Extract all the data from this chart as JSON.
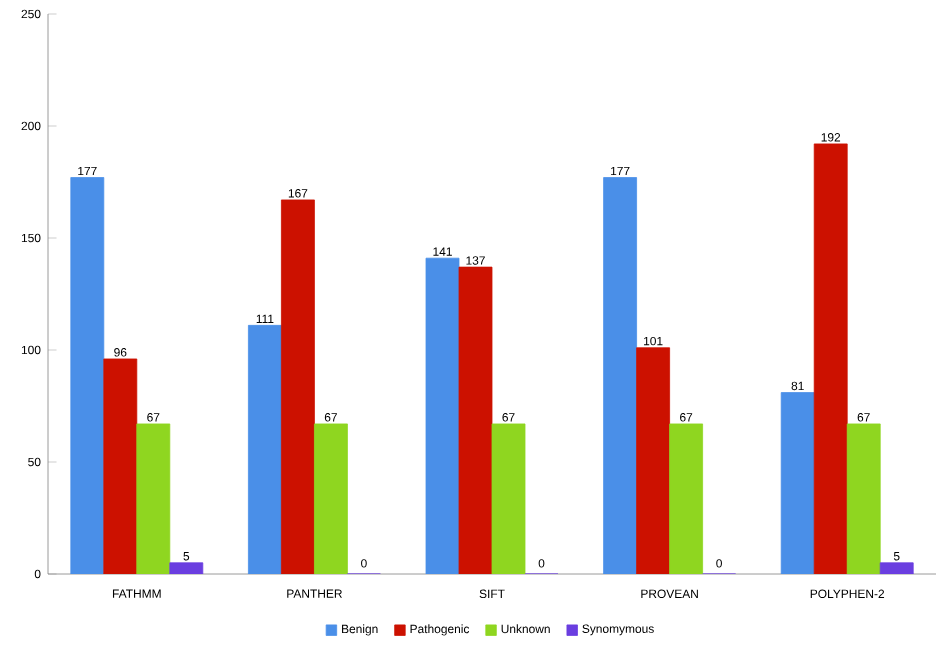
{
  "chart_data": {
    "type": "bar",
    "categories": [
      "FATHMM",
      "PANTHER",
      "SIFT",
      "PROVEAN",
      "POLYPHEN-2"
    ],
    "series": [
      {
        "name": "Benign",
        "color": "#4a8fe8",
        "values": [
          177,
          111,
          141,
          177,
          81
        ],
        "value_labels": [
          "177",
          "111",
          "141",
          "177",
          "81"
        ]
      },
      {
        "name": "Pathogenic",
        "color": "#cc1100",
        "values": [
          96,
          167,
          137,
          101,
          192
        ],
        "value_labels": [
          "96",
          "167",
          "137",
          "101",
          "192"
        ]
      },
      {
        "name": "Unknown",
        "color": "#8fd620",
        "values": [
          67,
          67,
          67,
          67,
          67
        ],
        "value_labels": [
          "67",
          "67",
          "67",
          "67",
          "67"
        ]
      },
      {
        "name": "Synomymous",
        "color": "#6a3ee0",
        "values": [
          5,
          0,
          0,
          0,
          5
        ],
        "value_labels": [
          "5",
          null,
          null,
          null,
          "5"
        ]
      }
    ],
    "ylim": [
      0,
      250
    ],
    "yticks": [
      0,
      50,
      100,
      150,
      200,
      250
    ],
    "grid": false,
    "legend": "bottom",
    "annotations": [
      "0",
      "0",
      "0"
    ]
  }
}
